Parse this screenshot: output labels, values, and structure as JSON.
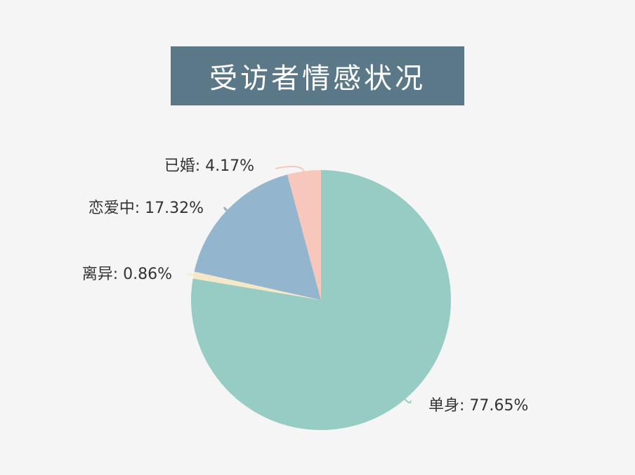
{
  "chart_data": {
    "type": "pie",
    "title": "受访者情感状况",
    "start_angle_deg": 0,
    "direction": "clockwise",
    "slices": [
      {
        "name": "单身",
        "value": 77.65,
        "label": "单身: 77.65%",
        "color": "#96ccc3"
      },
      {
        "name": "离异",
        "value": 0.86,
        "label": "离异: 0.86%",
        "color": "#f4e8c6"
      },
      {
        "name": "恋爱中",
        "value": 17.32,
        "label": "恋爱中: 17.32%",
        "color": "#93b5cd"
      },
      {
        "name": "已婚",
        "value": 4.17,
        "label": "已婚: 4.17%",
        "color": "#f8c7bc"
      }
    ],
    "title_background": "#5a7887",
    "background": "#f5f5f6"
  }
}
